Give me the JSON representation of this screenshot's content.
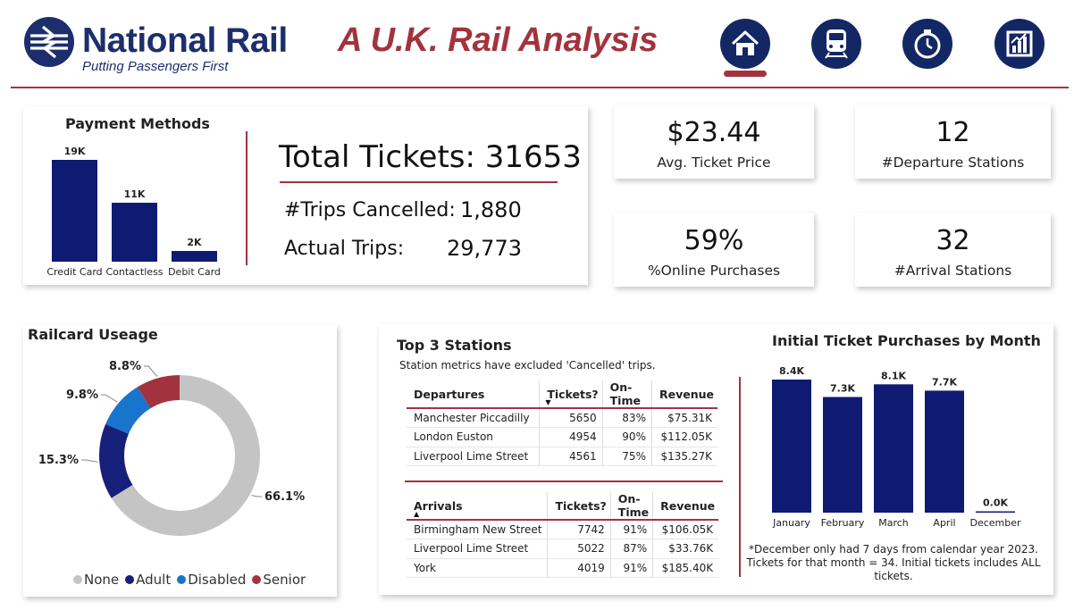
{
  "header": {
    "logo_name": "National Rail",
    "logo_tagline": "Putting Passengers First",
    "title": "A U.K. Rail Analysis",
    "nav": [
      {
        "icon": "home-icon",
        "active": true
      },
      {
        "icon": "train-icon",
        "active": false
      },
      {
        "icon": "stopwatch-icon",
        "active": false
      },
      {
        "icon": "report-chart-icon",
        "active": false
      }
    ],
    "colors": {
      "navy": "#132764",
      "brand_red": "#a2333e"
    }
  },
  "payment_methods": {
    "title": "Payment Methods",
    "chart_data": {
      "type": "bar",
      "categories": [
        "Credit Card",
        "Contactless",
        "Debit Card"
      ],
      "values": [
        19000,
        11000,
        2000
      ],
      "data_labels": [
        "19K",
        "11K",
        "2K"
      ],
      "color": "#0f1a73"
    }
  },
  "totals": {
    "total_label": "Total Tickets: 31653",
    "cancelled_label": "#Trips Cancelled:",
    "cancelled_value": "1,880",
    "actual_label": "Actual Trips:",
    "actual_value": "29,773"
  },
  "kpis": {
    "avg_price": {
      "value": "$23.44",
      "label": "Avg. Ticket Price"
    },
    "departure_stations": {
      "value": "12",
      "label": "#Departure Stations"
    },
    "online_purchases": {
      "value": "59%",
      "label": "%Online Purchases"
    },
    "arrival_stations": {
      "value": "32",
      "label": "#Arrival Stations"
    }
  },
  "railcard": {
    "title": "Railcard Useage",
    "chart_data": {
      "type": "pie",
      "donut": true,
      "categories": [
        "None",
        "Adult",
        "Disabled",
        "Senior"
      ],
      "values": [
        66.1,
        15.3,
        9.8,
        8.8
      ],
      "data_labels": [
        "66.1%",
        "15.3%",
        "9.8%",
        "8.8%"
      ],
      "colors": [
        "#c4c4c4",
        "#16207a",
        "#1874cd",
        "#a2333e"
      ],
      "legend_position": "bottom"
    }
  },
  "top_stations": {
    "title": "Top 3 Stations",
    "note": "Station metrics have excluded 'Cancelled' trips.",
    "departures": {
      "columns": [
        "Departures",
        "Tickets?",
        "On-Time",
        "Revenue"
      ],
      "rows": [
        [
          "Manchester Piccadilly",
          "5650",
          "83%",
          "$75.31K"
        ],
        [
          "London Euston",
          "4954",
          "90%",
          "$112.05K"
        ],
        [
          "Liverpool Lime Street",
          "4561",
          "75%",
          "$135.27K"
        ]
      ]
    },
    "arrivals": {
      "columns": [
        "Arrivals",
        "Tickets?",
        "On-Time",
        "Revenue"
      ],
      "rows": [
        [
          "Birmingham New Street",
          "7742",
          "91%",
          "$106.05K"
        ],
        [
          "Liverpool Lime Street",
          "5022",
          "87%",
          "$33.76K"
        ],
        [
          "York",
          "4019",
          "91%",
          "$185.40K"
        ]
      ]
    }
  },
  "monthly": {
    "title": "Initial Ticket Purchases by Month",
    "chart_data": {
      "type": "bar",
      "categories": [
        "January",
        "February",
        "March",
        "April",
        "December"
      ],
      "values": [
        8400,
        7300,
        8100,
        7700,
        34
      ],
      "data_labels": [
        "8.4K",
        "7.3K",
        "8.1K",
        "7.7K",
        "0.0K"
      ],
      "color": "#0f1a73"
    },
    "footnote": "*December only had 7 days from calendar year 2023. Tickets for that month = 34. Initial tickets includes ALL tickets."
  }
}
